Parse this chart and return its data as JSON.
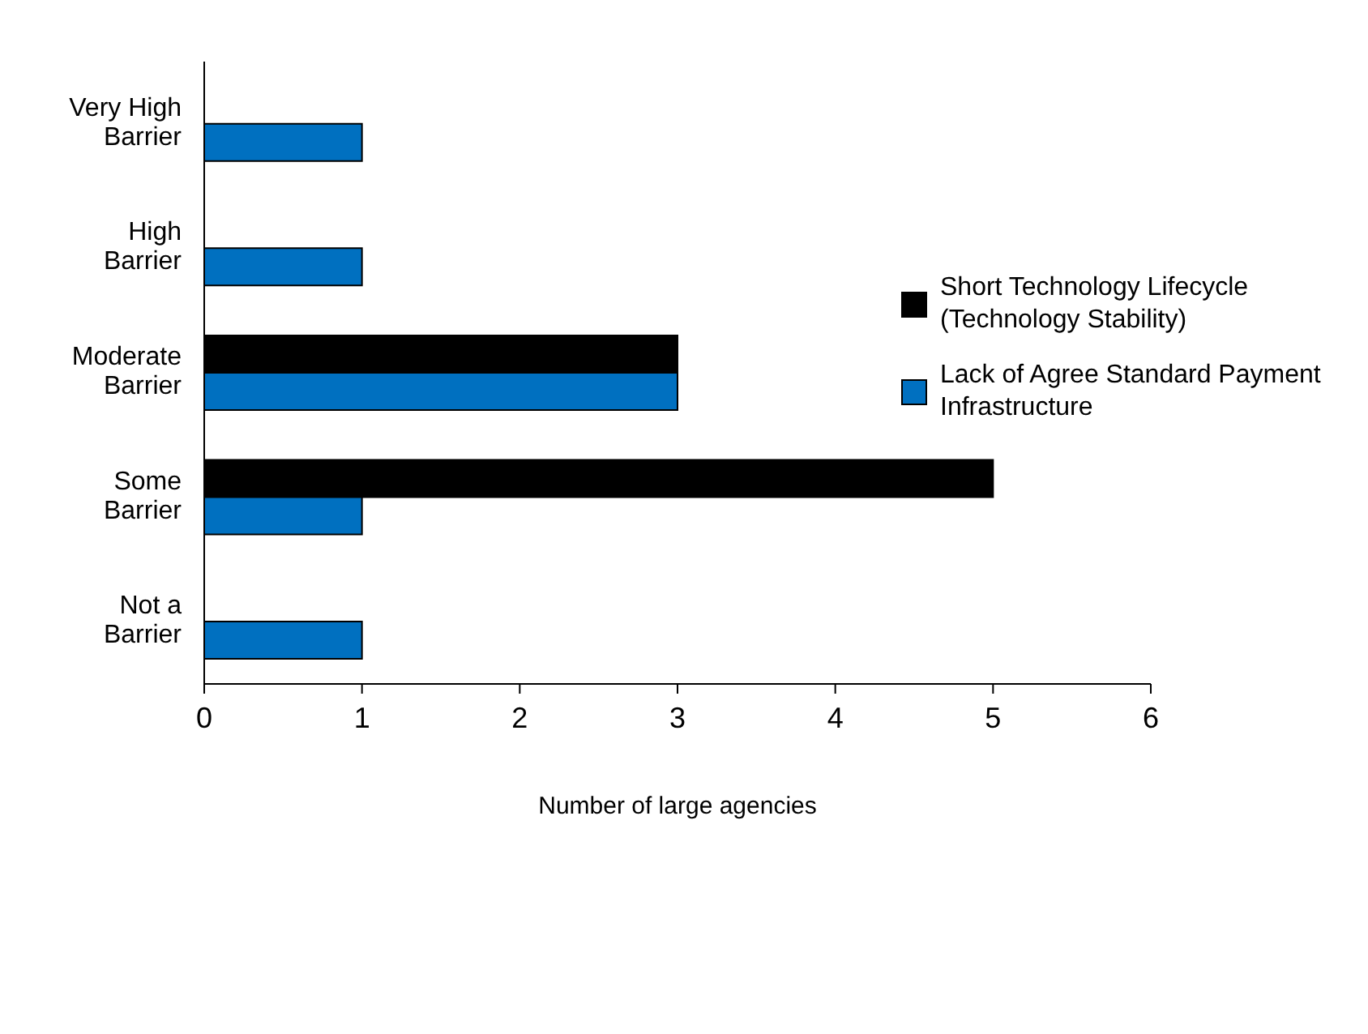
{
  "chart_data": {
    "type": "bar",
    "orientation": "horizontal",
    "categories": [
      "Very High Barrier",
      "High Barrier",
      "Moderate Barrier",
      "Some Barrier",
      "Not a Barrier"
    ],
    "series": [
      {
        "name": "Short Technology Lifecycle (Technology Stability)",
        "color": "#000000",
        "values": [
          0,
          0,
          3,
          5,
          0
        ]
      },
      {
        "name": "Lack of Agree Standard Payment Infrastructure",
        "color": "#0070c0",
        "values": [
          1,
          1,
          3,
          1,
          1
        ]
      }
    ],
    "xlabel": "Number of large agencies",
    "xlim": [
      0,
      6
    ],
    "xticks": [
      0,
      1,
      2,
      3,
      4,
      5,
      6
    ],
    "grid": false,
    "legend": "right"
  }
}
